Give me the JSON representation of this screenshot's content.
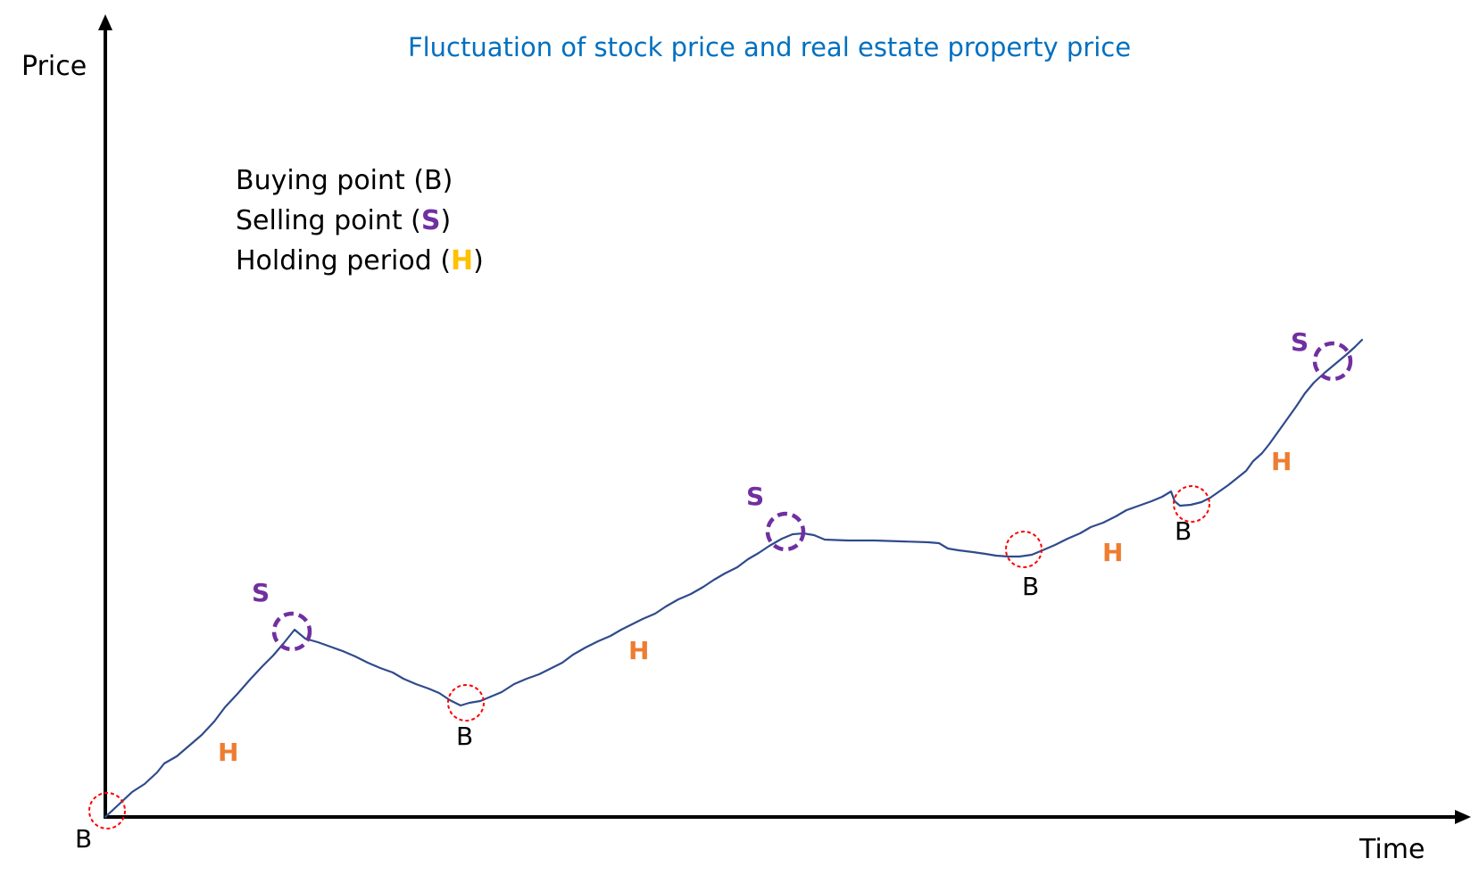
{
  "title": "Fluctuation of stock price and real estate property price",
  "axes": {
    "y_label": "Price",
    "x_label": "Time"
  },
  "legend": {
    "buying_label": "Buying point (B)",
    "selling_prefix": "Selling point (",
    "selling_code": "S",
    "selling_suffix": ")",
    "holding_prefix": "Holding period (",
    "holding_code": "H",
    "holding_suffix": ")"
  },
  "markers": {
    "buy": "B",
    "sell": "S",
    "hold": "H"
  },
  "colors": {
    "title": "#0070C0",
    "line": "#2F4B8C",
    "buy_circle": "#FF0000",
    "sell_circle": "#7030A0",
    "sell_text": "#7030A0",
    "hold_text": "#ED7D31",
    "hold_legend": "#FFC000",
    "axis": "#000000"
  }
}
